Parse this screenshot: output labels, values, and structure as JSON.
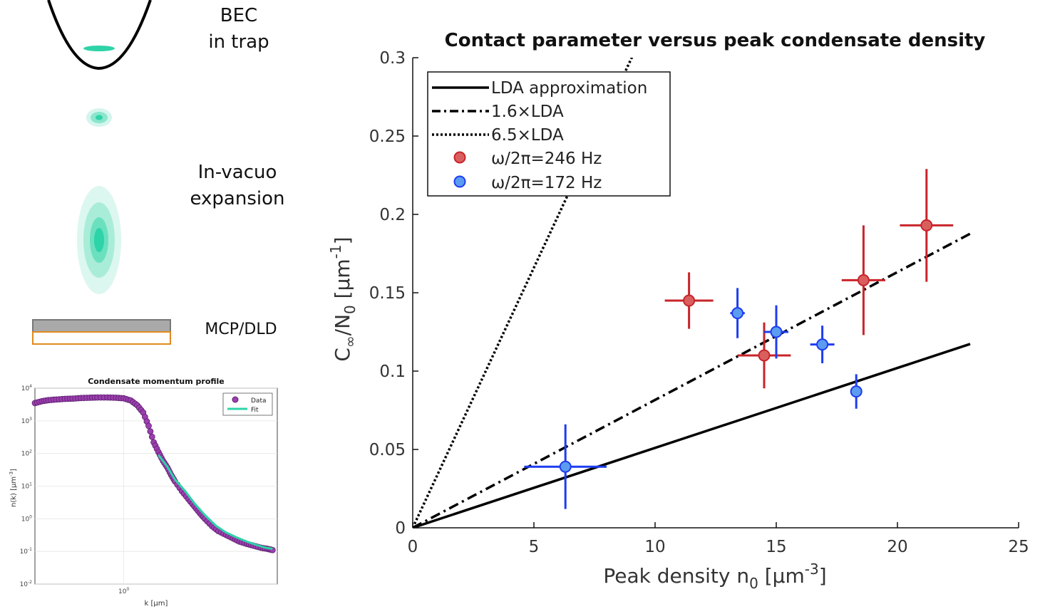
{
  "schematic": {
    "bec_label_line1": "BEC",
    "bec_label_line2": "in trap",
    "expansion_label_line1": "In-vacuo",
    "expansion_label_line2": "expansion",
    "detector_label": "MCP/DLD",
    "colors": {
      "cloud": "#2ed3a8",
      "detector_top": "#a9a9a9",
      "detector_border": "#e08a1e"
    }
  },
  "main_chart": {
    "chart_data": {
      "type": "scatter",
      "title": "Contact parameter versus peak condensate density",
      "xlabel": "Peak density n",
      "xlabel_sub": "0",
      "xlabel_unit_open": " [μm",
      "xlabel_sup": "-3",
      "xlabel_unit_close": "]",
      "ylabel_C": "C",
      "ylabel_C_sub": "∞",
      "ylabel_N": "/N",
      "ylabel_N_sub": "0",
      "ylabel_unit_open": " [μm",
      "ylabel_sup": "-1",
      "ylabel_unit_close": "]",
      "xlim": [
        0,
        25
      ],
      "ylim": [
        0,
        0.3
      ],
      "xticks": [
        0,
        5,
        10,
        15,
        20,
        25
      ],
      "xtick_labels": [
        "0",
        "5",
        "10",
        "15",
        "20",
        "25"
      ],
      "yticks": [
        0,
        0.05,
        0.1,
        0.15,
        0.2,
        0.25,
        0.3
      ],
      "ytick_labels": [
        "0",
        "0.05",
        "0.1",
        "0.15",
        "0.2",
        "0.25",
        "0.3"
      ],
      "lines": [
        {
          "name": "LDA approximation",
          "slope": 0.0051,
          "x_range": [
            0,
            23
          ],
          "style": "solid",
          "color": "#000000"
        },
        {
          "name": "1.6×LDA",
          "slope": 0.00816,
          "x_range": [
            0,
            23
          ],
          "style": "dashdot",
          "color": "#000000"
        },
        {
          "name": "6.5×LDA",
          "slope": 0.0332,
          "x_range": [
            0,
            9.2
          ],
          "style": "dotted",
          "color": "#000000"
        }
      ],
      "series": [
        {
          "name": "ω/2π=246 Hz",
          "color": "#c8242a",
          "fill": "#d95f5f",
          "points": [
            {
              "x": 11.4,
              "y": 0.145,
              "xerr": 1.0,
              "yerr": 0.018
            },
            {
              "x": 14.5,
              "y": 0.11,
              "xerr": 1.1,
              "yerr": 0.021
            },
            {
              "x": 18.6,
              "y": 0.158,
              "xerr": 0.9,
              "yerr": 0.035
            },
            {
              "x": 21.2,
              "y": 0.193,
              "xerr": 1.1,
              "yerr": 0.036
            }
          ]
        },
        {
          "name": "ω/2π=172 Hz",
          "color": "#1f3cf0",
          "fill": "#5b9cf0",
          "points": [
            {
              "x": 6.3,
              "y": 0.039,
              "xerr": 1.7,
              "yerr": 0.027
            },
            {
              "x": 13.4,
              "y": 0.137,
              "xerr": 0.3,
              "yerr": 0.016
            },
            {
              "x": 15.0,
              "y": 0.125,
              "xerr": 0.5,
              "yerr": 0.017
            },
            {
              "x": 16.9,
              "y": 0.117,
              "xerr": 0.5,
              "yerr": 0.012
            },
            {
              "x": 18.3,
              "y": 0.087,
              "xerr": 0.1,
              "yerr": 0.011
            }
          ]
        }
      ],
      "legend": {
        "position": "top-left",
        "entries": [
          "LDA approximation",
          "1.6×LDA",
          "6.5×LDA",
          "ω/2π=246 Hz",
          "ω/2π=172 Hz"
        ]
      }
    }
  },
  "inset_chart": {
    "chart_data": {
      "type": "scatter",
      "title": "Condensate momentum profile",
      "xlabel": "k [μm]",
      "ylabel": "n(k) [μm",
      "ylabel_sup": "-3",
      "ylabel_close": "]",
      "xscale": "log",
      "yscale": "log",
      "xlim": [
        0.3,
        8
      ],
      "ylim": [
        0.01,
        10000
      ],
      "xtick_label": "10",
      "xtick_label_sup": "0",
      "ytick_base": "10",
      "ytick_exponents": [
        "4",
        "3",
        "2",
        "1",
        "0",
        "-1",
        "-2"
      ],
      "data_x": [
        0.3,
        0.33,
        0.36,
        0.4,
        0.45,
        0.5,
        0.56,
        0.63,
        0.7,
        0.8,
        0.9,
        1.0,
        1.1,
        1.2,
        1.3,
        1.4,
        1.5,
        1.6,
        1.7,
        1.8,
        1.9,
        2.0,
        2.2,
        2.4,
        2.6,
        2.8,
        3.0,
        3.3,
        3.6,
        4.0,
        4.4,
        4.8,
        5.3,
        5.8,
        6.4,
        7.0,
        7.5
      ],
      "data_y": [
        3500,
        4000,
        4300,
        4500,
        4700,
        4800,
        5000,
        5100,
        5200,
        5200,
        5100,
        4900,
        4200,
        3000,
        1800,
        700,
        220,
        110,
        60,
        38,
        22,
        14,
        7,
        4,
        2.4,
        1.5,
        1.0,
        0.6,
        0.42,
        0.32,
        0.25,
        0.2,
        0.17,
        0.15,
        0.13,
        0.12,
        0.11
      ],
      "fit_x": [
        1.6,
        1.8,
        2.0,
        2.3,
        2.6,
        3.0,
        3.5,
        4.0,
        4.6,
        5.3,
        6.0,
        6.8,
        7.5
      ],
      "fit_y": [
        90,
        40,
        16,
        7,
        3,
        1.3,
        0.6,
        0.38,
        0.27,
        0.2,
        0.16,
        0.13,
        0.12
      ],
      "legend": {
        "position": "top-right",
        "entries": [
          "Data",
          "Fit"
        ]
      },
      "colors": {
        "data_fill": "#9b3fae",
        "data_edge": "#5c1f6e",
        "fit": "#2ed3a8"
      }
    }
  }
}
